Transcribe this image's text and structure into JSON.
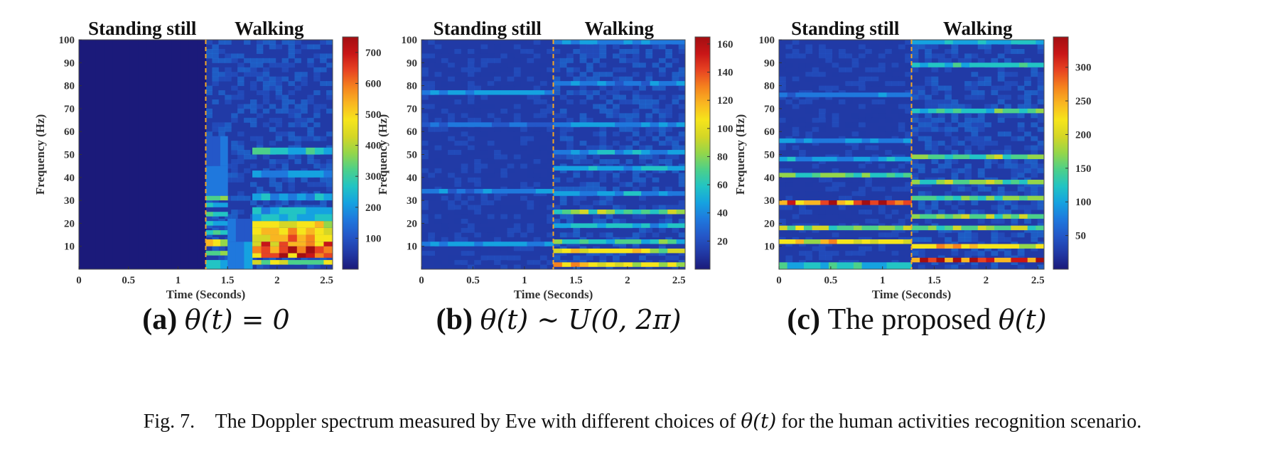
{
  "figure": {
    "caption": {
      "label": "Fig. 7.",
      "text_before": "The Doppler spectrum measured by Eve with different choices of",
      "math": "θ(t)",
      "text_after": "for the human activities recognition scenario."
    }
  },
  "colormap": [
    "#1b1a7a",
    "#213aa6",
    "#2457c8",
    "#1f78dd",
    "#15a2e0",
    "#22c4c4",
    "#4cd08a",
    "#94d64a",
    "#d4d626",
    "#f6e51b",
    "#f9b621",
    "#f5821e",
    "#e74322",
    "#c81617",
    "#a30e12"
  ],
  "chart_data": [
    {
      "type": "heatmap",
      "panel_label": "(a)",
      "subtitle": "θ(t) = 0",
      "segment_labels": [
        "Standing still",
        "Walking"
      ],
      "divider_x": 1.28,
      "xlabel": "Time (Seconds)",
      "ylabel": "Frequency (Hz)",
      "xlim": [
        0,
        2.56
      ],
      "ylim": [
        0,
        100
      ],
      "xticks": [
        0,
        0.5,
        1,
        1.5,
        2,
        2.5
      ],
      "yticks": [
        10,
        20,
        30,
        40,
        50,
        60,
        70,
        80,
        90,
        100
      ],
      "colorbar": {
        "ticks": [
          100,
          200,
          300,
          400,
          500,
          600,
          700
        ],
        "range": [
          0,
          750
        ]
      },
      "time_segments": [
        {
          "t_end": 1.28,
          "freq_bands": [
            {
              "f": [
                0,
                100
              ],
              "value": 10
            }
          ]
        },
        {
          "t_end": 1.5,
          "freq_bands": [
            {
              "f": [
                0,
                4
              ],
              "value": 260
            },
            {
              "f": [
                6,
                8
              ],
              "value": 330
            },
            {
              "f": [
                10,
                13
              ],
              "value": 520
            },
            {
              "f": [
                15,
                17
              ],
              "value": 300
            },
            {
              "f": [
                19,
                21
              ],
              "value": 280
            },
            {
              "f": [
                23,
                25
              ],
              "value": 260
            },
            {
              "f": [
                27,
                29
              ],
              "value": 250
            },
            {
              "f": [
                30,
                32
              ],
              "value": 420
            },
            {
              "f": [
                32,
                45
              ],
              "value": 220
            },
            {
              "f": [
                45,
                58
              ],
              "value": 160
            }
          ]
        },
        {
          "t_end": 1.75,
          "freq_bands": [
            {
              "f": [
                0,
                12
              ],
              "value": 200
            },
            {
              "f": [
                12,
                22
              ],
              "value": 130
            }
          ]
        },
        {
          "t_end": 2.56,
          "freq_bands": [
            {
              "f": [
                2,
                4
              ],
              "value": 420
            },
            {
              "f": [
                5,
                7
              ],
              "value": 680
            },
            {
              "f": [
                7,
                10
              ],
              "value": 720
            },
            {
              "f": [
                10,
                12
              ],
              "value": 620
            },
            {
              "f": [
                12,
                15
              ],
              "value": 560
            },
            {
              "f": [
                15,
                18
              ],
              "value": 520
            },
            {
              "f": [
                18,
                21
              ],
              "value": 480
            },
            {
              "f": [
                21,
                24
              ],
              "value": 300
            },
            {
              "f": [
                24,
                27
              ],
              "value": 240
            },
            {
              "f": [
                30,
                33
              ],
              "value": 220
            },
            {
              "f": [
                40,
                43
              ],
              "value": 200
            },
            {
              "f": [
                50,
                53
              ],
              "value": 280
            }
          ]
        }
      ]
    },
    {
      "type": "heatmap",
      "panel_label": "(b)",
      "subtitle": "θ(t) ∼ U(0, 2π)",
      "segment_labels": [
        "Standing still",
        "Walking"
      ],
      "divider_x": 1.28,
      "xlabel": "Time (Seconds)",
      "ylabel": "Frequency (Hz)",
      "xlim": [
        0,
        2.56
      ],
      "ylim": [
        0,
        100
      ],
      "xticks": [
        0,
        0.5,
        1,
        1.5,
        2,
        2.5
      ],
      "yticks": [
        10,
        20,
        30,
        40,
        50,
        60,
        70,
        80,
        90,
        100
      ],
      "colorbar": {
        "ticks": [
          20,
          40,
          60,
          80,
          100,
          120,
          140,
          160
        ],
        "range": [
          0,
          165
        ]
      },
      "time_segments": [
        {
          "t_end": 1.28,
          "freq_bands": [
            {
              "f": [
                10,
                12
              ],
              "value": 45
            },
            {
              "f": [
                33,
                35
              ],
              "value": 40
            },
            {
              "f": [
                62,
                64
              ],
              "value": 35
            },
            {
              "f": [
                76,
                78
              ],
              "value": 45
            }
          ]
        },
        {
          "t_end": 2.56,
          "freq_bands": [
            {
              "f": [
                1,
                3
              ],
              "value": 110
            },
            {
              "f": [
                7,
                9
              ],
              "value": 100
            },
            {
              "f": [
                11,
                13
              ],
              "value": 70
            },
            {
              "f": [
                18,
                20
              ],
              "value": 55
            },
            {
              "f": [
                24,
                26
              ],
              "value": 80
            },
            {
              "f": [
                32,
                34
              ],
              "value": 50
            },
            {
              "f": [
                43,
                45
              ],
              "value": 55
            },
            {
              "f": [
                50,
                52
              ],
              "value": 50
            },
            {
              "f": [
                62,
                64
              ],
              "value": 45
            },
            {
              "f": [
                80,
                82
              ],
              "value": 40
            },
            {
              "f": [
                98,
                100
              ],
              "value": 45
            }
          ]
        }
      ]
    },
    {
      "type": "heatmap",
      "panel_label": "(c)",
      "subtitle_text": "The proposed",
      "subtitle": "θ(t)",
      "segment_labels": [
        "Standing still",
        "Walking"
      ],
      "divider_x": 1.28,
      "xlabel": "Time (Seconds)",
      "ylabel": "Frequency (Hz)",
      "xlim": [
        0,
        2.56
      ],
      "ylim": [
        0,
        100
      ],
      "xticks": [
        0,
        0.5,
        1,
        1.5,
        2,
        2.5
      ],
      "yticks": [
        10,
        20,
        30,
        40,
        50,
        60,
        70,
        80,
        90,
        100
      ],
      "colorbar": {
        "ticks": [
          50,
          100,
          150,
          200,
          250,
          300
        ],
        "range": [
          0,
          345
        ]
      },
      "time_segments": [
        {
          "t_end": 1.28,
          "freq_bands": [
            {
              "f": [
                0,
                3
              ],
              "value": 130
            },
            {
              "f": [
                11,
                13
              ],
              "value": 240
            },
            {
              "f": [
                17,
                19
              ],
              "value": 190
            },
            {
              "f": [
                28,
                30
              ],
              "value": 300
            },
            {
              "f": [
                40,
                42
              ],
              "value": 150
            },
            {
              "f": [
                47,
                49
              ],
              "value": 110
            },
            {
              "f": [
                55,
                57
              ],
              "value": 90
            },
            {
              "f": [
                75,
                77
              ],
              "value": 80
            }
          ]
        },
        {
          "t_end": 2.56,
          "freq_bands": [
            {
              "f": [
                3,
                5
              ],
              "value": 330
            },
            {
              "f": [
                9,
                11
              ],
              "value": 240
            },
            {
              "f": [
                17,
                19
              ],
              "value": 180
            },
            {
              "f": [
                22,
                24
              ],
              "value": 170
            },
            {
              "f": [
                30,
                32
              ],
              "value": 160
            },
            {
              "f": [
                37,
                39
              ],
              "value": 170
            },
            {
              "f": [
                48,
                50
              ],
              "value": 170
            },
            {
              "f": [
                68,
                70
              ],
              "value": 150
            },
            {
              "f": [
                88,
                90
              ],
              "value": 130
            },
            {
              "f": [
                98,
                100
              ],
              "value": 120
            }
          ]
        }
      ]
    }
  ]
}
